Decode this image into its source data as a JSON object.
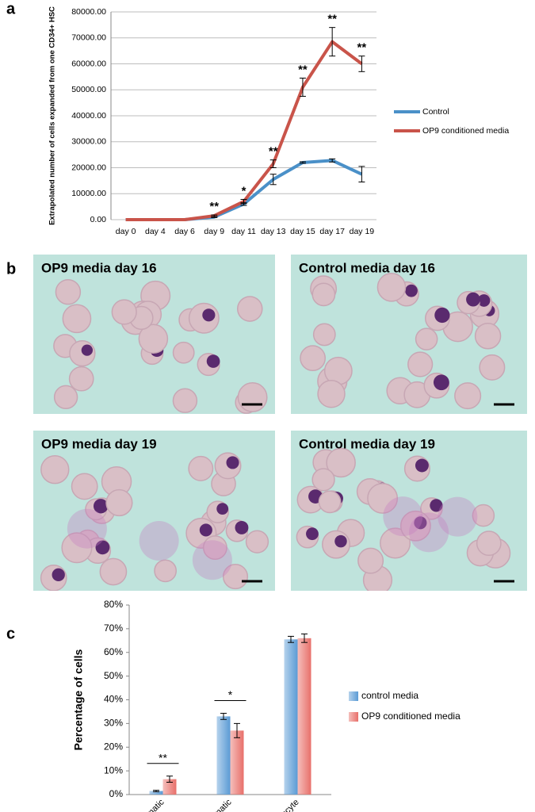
{
  "chart_data": [
    {
      "type": "line",
      "panel_label": "a",
      "y_label": "Extrapolated number of cells expanded from one CD34+ HSC",
      "categories": [
        "day 0",
        "day 4",
        "day 6",
        "day 9",
        "day 11",
        "day 13",
        "day 15",
        "day 17",
        "day 19"
      ],
      "series": [
        {
          "name": "Control",
          "color": "#4a90c8",
          "values": [
            0,
            0,
            0,
            1000,
            6000,
            15500,
            22000,
            22800,
            17500
          ],
          "errors": [
            0,
            0,
            0,
            200,
            500,
            2000,
            300,
            600,
            3000
          ]
        },
        {
          "name": "OP9 conditioned media",
          "color": "#c9544a",
          "values": [
            0,
            0,
            0,
            1500,
            7000,
            21500,
            51000,
            68500,
            60000
          ],
          "errors": [
            0,
            0,
            0,
            300,
            800,
            1500,
            3500,
            5500,
            3000
          ]
        }
      ],
      "significance": [
        null,
        null,
        null,
        "**",
        "*",
        "**",
        "**",
        "**",
        "**"
      ],
      "ylim": [
        0,
        80000
      ],
      "yticks": [
        {
          "value": 0,
          "label": "0.00"
        },
        {
          "value": 10000,
          "label": "10000.00"
        },
        {
          "value": 20000,
          "label": "20000.00"
        },
        {
          "value": 30000,
          "label": "30000.00"
        },
        {
          "value": 40000,
          "label": "40000.00"
        },
        {
          "value": 50000,
          "label": "50000.00"
        },
        {
          "value": 60000,
          "label": "60000.00"
        },
        {
          "value": 70000,
          "label": "70000.00"
        },
        {
          "value": 80000,
          "label": "80000.00"
        }
      ],
      "grid": true,
      "legend": "right"
    },
    {
      "type": "bar",
      "panel_label": "c",
      "y_label": "Percentage of cells",
      "categories": [
        "Polychromatic",
        "Orthochromatic",
        "Reticulocyte"
      ],
      "series": [
        {
          "name": "control media",
          "color": "#5b9bd5",
          "values": [
            1.5,
            33,
            65.5
          ],
          "errors": [
            0.3,
            1.3,
            1.3
          ]
        },
        {
          "name": "OP9 conditioned media",
          "color": "#e8706a",
          "values": [
            6.5,
            27,
            66
          ],
          "errors": [
            1.3,
            3,
            1.8
          ]
        }
      ],
      "significance": [
        "**",
        "*",
        null
      ],
      "ylim": [
        0,
        80
      ],
      "yticks": [
        {
          "value": 0,
          "label": "0%"
        },
        {
          "value": 10,
          "label": "10%"
        },
        {
          "value": 20,
          "label": "20%"
        },
        {
          "value": 30,
          "label": "30%"
        },
        {
          "value": 40,
          "label": "40%"
        },
        {
          "value": 50,
          "label": "50%"
        },
        {
          "value": 60,
          "label": "60%"
        },
        {
          "value": 70,
          "label": "70%"
        },
        {
          "value": 80,
          "label": "80%"
        }
      ],
      "grid": false,
      "legend": "right"
    }
  ],
  "micrographs": {
    "panel_label": "b",
    "panels": [
      {
        "title": "OP9 media day 16"
      },
      {
        "title": "Control media day 16"
      },
      {
        "title": "OP9 media day 19"
      },
      {
        "title": "Control media day 19"
      }
    ]
  }
}
